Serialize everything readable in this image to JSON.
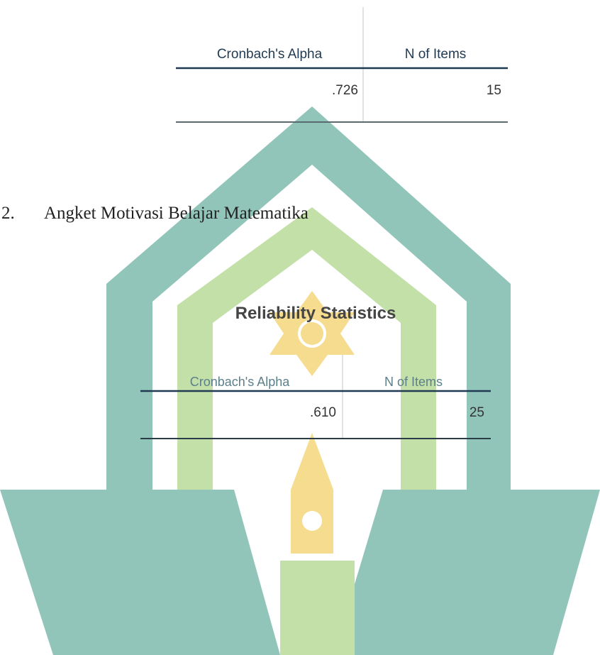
{
  "table1": {
    "headers": [
      "Cronbach's Alpha",
      "N of Items"
    ],
    "rows": [
      [
        ".726",
        "15"
      ]
    ]
  },
  "item": {
    "number": "2.",
    "text": "Angket Motivasi Belajar Matematika"
  },
  "table2": {
    "title": "Reliability Statistics",
    "headers": [
      "Cronbach's Alpha",
      "N of Items"
    ],
    "rows": [
      [
        ".610",
        "25"
      ]
    ]
  }
}
